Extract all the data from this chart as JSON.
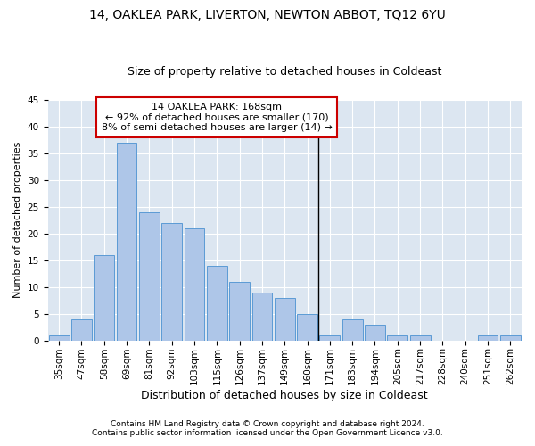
{
  "title1": "14, OAKLEA PARK, LIVERTON, NEWTON ABBOT, TQ12 6YU",
  "title2": "Size of property relative to detached houses in Coldeast",
  "xlabel": "Distribution of detached houses by size in Coldeast",
  "ylabel": "Number of detached properties",
  "footnote1": "Contains HM Land Registry data © Crown copyright and database right 2024.",
  "footnote2": "Contains public sector information licensed under the Open Government Licence v3.0.",
  "bar_labels": [
    "35sqm",
    "47sqm",
    "58sqm",
    "69sqm",
    "81sqm",
    "92sqm",
    "103sqm",
    "115sqm",
    "126sqm",
    "137sqm",
    "149sqm",
    "160sqm",
    "171sqm",
    "183sqm",
    "194sqm",
    "205sqm",
    "217sqm",
    "228sqm",
    "240sqm",
    "251sqm",
    "262sqm"
  ],
  "bar_values": [
    1,
    4,
    16,
    37,
    24,
    22,
    21,
    14,
    11,
    9,
    8,
    5,
    1,
    4,
    3,
    1,
    1,
    0,
    0,
    1,
    1
  ],
  "bar_color": "#aec6e8",
  "bar_edge_color": "#5b9bd5",
  "annotation_box_text": "14 OAKLEA PARK: 168sqm\n← 92% of detached houses are smaller (170)\n8% of semi-detached houses are larger (14) →",
  "annotation_box_color": "#cc0000",
  "vertical_line_color": "#000000",
  "ylim": [
    0,
    45
  ],
  "yticks": [
    0,
    5,
    10,
    15,
    20,
    25,
    30,
    35,
    40,
    45
  ],
  "plot_bg_color": "#dce6f1",
  "title1_fontsize": 10,
  "title2_fontsize": 9,
  "xlabel_fontsize": 9,
  "ylabel_fontsize": 8,
  "tick_fontsize": 7.5,
  "annotation_fontsize": 8,
  "footnote_fontsize": 6.5
}
